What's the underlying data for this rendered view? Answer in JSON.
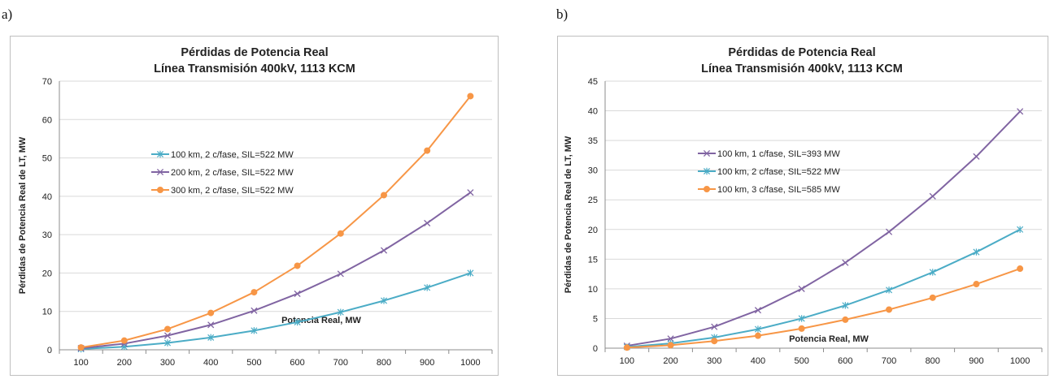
{
  "panels": [
    {
      "label": "a)"
    },
    {
      "label": "b)"
    }
  ],
  "chart_data": [
    {
      "type": "line",
      "title": "Pérdidas de Potencia Real",
      "subtitle": "Línea  Transmisión 400kV, 1113 KCM",
      "xlabel": "Potencia Real, MW",
      "ylabel": "Pérdidas de Potencia Real de LT,  MW",
      "x": [
        100,
        200,
        300,
        400,
        500,
        600,
        700,
        800,
        900,
        1000
      ],
      "ylim": [
        0,
        70
      ],
      "yticks": [
        0,
        10,
        20,
        30,
        40,
        50,
        60,
        70
      ],
      "grid": "horizontal",
      "legend_position": "upper-left",
      "series": [
        {
          "name": "100 km, 2 c/fase, SIL=522 MW",
          "marker": "asterisk",
          "color": "#4bacc6",
          "values": [
            0.2,
            0.8,
            1.8,
            3.2,
            5.0,
            7.2,
            9.8,
            12.8,
            16.2,
            20.0
          ]
        },
        {
          "name": "200 km, 2 c/fase, SIL=522 MW",
          "marker": "x",
          "color": "#8064a2",
          "values": [
            0.4,
            1.6,
            3.7,
            6.5,
            10.2,
            14.6,
            19.8,
            25.9,
            33.0,
            41.0
          ]
        },
        {
          "name": "300 km, 2 c/fase, SIL=522 MW",
          "marker": "circle",
          "color": "#f79646",
          "values": [
            0.6,
            2.4,
            5.4,
            9.6,
            15.0,
            21.9,
            30.3,
            40.3,
            51.9,
            66.1
          ]
        }
      ]
    },
    {
      "type": "line",
      "title": "Pérdidas de Potencia Real",
      "subtitle": "Línea  Transmisión 400kV, 1113 KCM",
      "xlabel": "Potencia Real, MW",
      "ylabel": "Pérdidas de Potencia Real de LT,  MW",
      "x": [
        100,
        200,
        300,
        400,
        500,
        600,
        700,
        800,
        900,
        1000
      ],
      "ylim": [
        0,
        45
      ],
      "yticks": [
        0,
        5,
        10,
        15,
        20,
        25,
        30,
        35,
        40,
        45
      ],
      "grid": "horizontal",
      "legend_position": "upper-left",
      "series": [
        {
          "name": "100 km, 1 c/fase, SIL=393 MW",
          "marker": "x",
          "color": "#8064a2",
          "values": [
            0.4,
            1.6,
            3.6,
            6.4,
            10.0,
            14.4,
            19.6,
            25.6,
            32.3,
            39.9
          ]
        },
        {
          "name": "100 km, 2 c/fase, SIL=522 MW",
          "marker": "asterisk",
          "color": "#4bacc6",
          "values": [
            0.2,
            0.8,
            1.8,
            3.2,
            5.0,
            7.2,
            9.8,
            12.8,
            16.2,
            20.0
          ]
        },
        {
          "name": "100 km, 3 c/fase, SIL=585 MW",
          "marker": "circle",
          "color": "#f79646",
          "values": [
            0.1,
            0.5,
            1.2,
            2.1,
            3.3,
            4.8,
            6.5,
            8.5,
            10.8,
            13.4
          ]
        }
      ]
    }
  ]
}
